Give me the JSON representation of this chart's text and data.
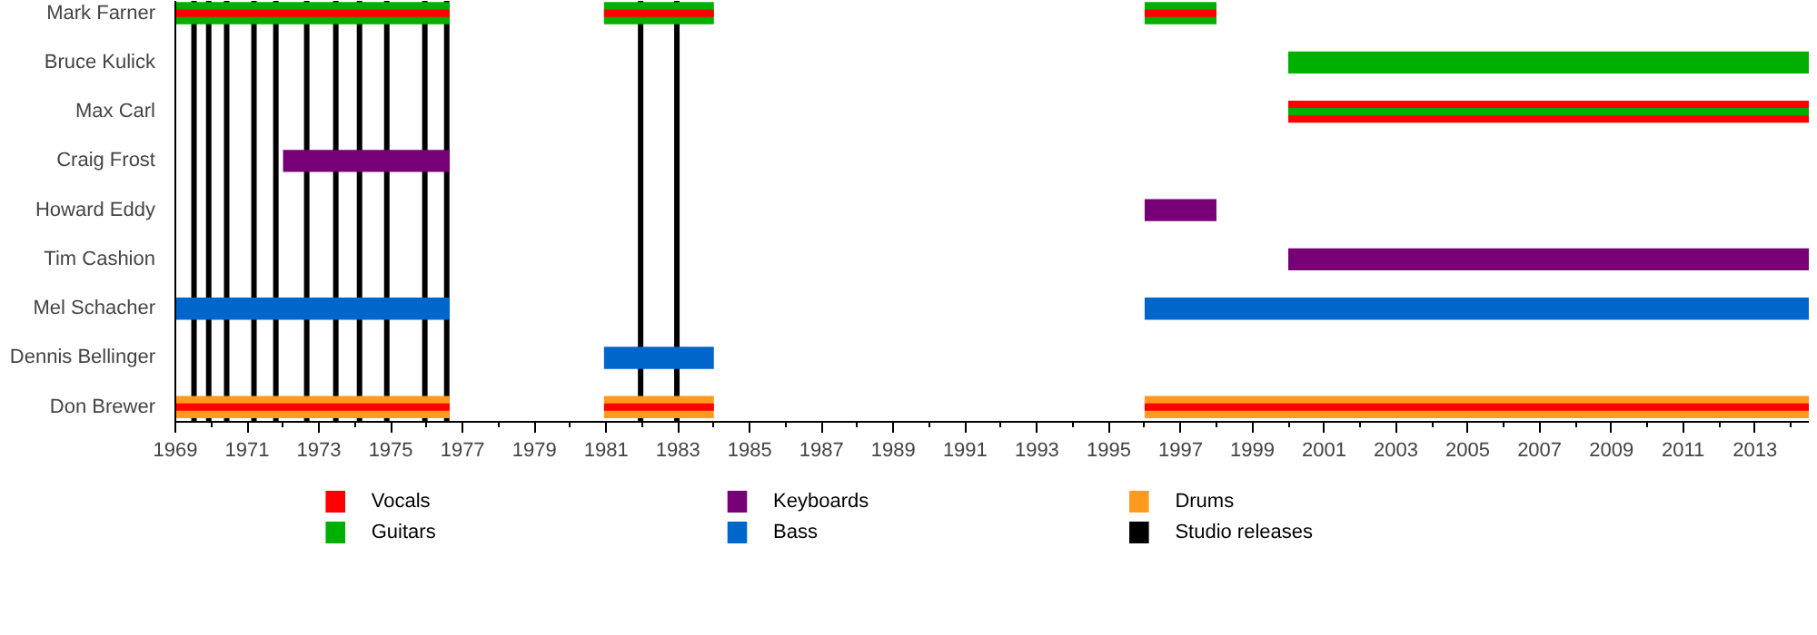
{
  "chart_data": {
    "type": "bar",
    "orientation": "horizontal",
    "categories": [
      "Mark Farner",
      "Bruce Kulick",
      "Max Carl",
      "Craig Frost",
      "Howard Eddy",
      "Tim Cashion",
      "Mel Schacher",
      "Dennis Bellinger",
      "Don Brewer"
    ],
    "xlim": [
      1969,
      2014.5
    ],
    "xticks": [
      1969,
      {
        "value": 1970,
        "label": null
      },
      1971,
      {
        "value": 1972,
        "label": null
      },
      1973,
      {
        "value": 1974,
        "label": null
      },
      1975,
      {
        "value": 1976,
        "label": null
      },
      1977,
      {
        "value": 1978,
        "label": null
      },
      1979,
      {
        "value": 1980,
        "label": null
      },
      1981,
      {
        "value": 1982,
        "label": null
      },
      1983,
      {
        "value": 1984,
        "label": null
      },
      1985,
      {
        "value": 1986,
        "label": null
      },
      1987,
      {
        "value": 1988,
        "label": null
      },
      1989,
      {
        "value": 1990,
        "label": null
      },
      1991,
      {
        "value": 1992,
        "label": null
      },
      1993,
      {
        "value": 1994,
        "label": null
      },
      1995,
      {
        "value": 1996,
        "label": null
      },
      1997,
      {
        "value": 1998,
        "label": null
      },
      1999,
      {
        "value": 2000,
        "label": null
      },
      2001,
      {
        "value": 2002,
        "label": null
      },
      2003,
      {
        "value": 2004,
        "label": null
      },
      2005,
      {
        "value": 2006,
        "label": null
      },
      2007,
      {
        "value": 2008,
        "label": null
      },
      2009,
      {
        "value": 2010,
        "label": null
      },
      2011,
      {
        "value": 2012,
        "label": null
      },
      2013,
      {
        "value": 2014,
        "label": null
      }
    ],
    "series": [
      {
        "name": "Vocals",
        "color": "#ff0000",
        "base": [
          null,
          null,
          2000,
          null,
          null,
          null,
          null,
          null,
          null
        ],
        "values": [
          null,
          null,
          14.5,
          null,
          null,
          null,
          null,
          null,
          null
        ]
      },
      {
        "name": "Guitars",
        "color": "#00b000",
        "base": [
          1969,
          2000,
          2000,
          null,
          null,
          null,
          null,
          null,
          null
        ],
        "values": [
          7.64,
          14.5,
          14.5,
          null,
          null,
          null,
          null,
          null,
          null
        ]
      },
      {
        "color": "#00b000",
        "base": [
          1980.94,
          null,
          null,
          null,
          null,
          null,
          null,
          null,
          null
        ],
        "values": [
          3.06,
          null,
          null,
          null,
          null,
          null,
          null,
          null,
          null
        ]
      },
      {
        "color": "#00b000",
        "base": [
          1996,
          null,
          null,
          null,
          null,
          null,
          null,
          null,
          null
        ],
        "values": [
          2,
          null,
          null,
          null,
          null,
          null,
          null,
          null,
          null
        ]
      },
      {
        "name": "Keyboards",
        "color": "#770077",
        "base": [
          null,
          null,
          null,
          1972,
          1996,
          2000,
          null,
          null,
          null
        ],
        "values": [
          null,
          null,
          null,
          4.64,
          2,
          14.5,
          null,
          null,
          null
        ]
      },
      {
        "name": "Bass",
        "color": "#0066cc",
        "base": [
          null,
          null,
          null,
          null,
          null,
          null,
          1969,
          1980.94,
          null
        ],
        "values": [
          null,
          null,
          null,
          null,
          null,
          null,
          7.64,
          3.06,
          null
        ]
      },
      {
        "color": "#0066cc",
        "base": [
          null,
          null,
          null,
          null,
          null,
          null,
          1996,
          null,
          null
        ],
        "values": [
          null,
          null,
          null,
          null,
          null,
          null,
          18.5,
          null,
          null
        ]
      },
      {
        "name": "Drums",
        "color": "#ff9a1f",
        "base": [
          null,
          null,
          null,
          null,
          null,
          null,
          null,
          null,
          1969
        ],
        "values": [
          null,
          null,
          null,
          null,
          null,
          null,
          null,
          null,
          7.64
        ]
      },
      {
        "color": "#ff9a1f",
        "base": [
          null,
          null,
          null,
          null,
          null,
          null,
          null,
          null,
          1980.94
        ],
        "values": [
          null,
          null,
          null,
          null,
          null,
          null,
          null,
          null,
          3.06
        ]
      },
      {
        "color": "#ff9a1f",
        "base": [
          null,
          null,
          null,
          null,
          null,
          null,
          null,
          null,
          1996
        ],
        "values": [
          null,
          null,
          null,
          null,
          null,
          null,
          null,
          null,
          18.5
        ]
      },
      {
        "color": "#ff0000",
        "base": [
          1969,
          null,
          null,
          null,
          null,
          null,
          null,
          null,
          1969
        ],
        "values": [
          7.64,
          null,
          null,
          null,
          null,
          null,
          null,
          null,
          7.64
        ]
      },
      {
        "color": "#ff0000",
        "base": [
          1980.94,
          null,
          null,
          null,
          null,
          null,
          null,
          null,
          1980.94
        ],
        "values": [
          3.06,
          null,
          null,
          null,
          null,
          null,
          null,
          null,
          3.06
        ]
      },
      {
        "color": "#ff0000",
        "base": [
          1996,
          null,
          null,
          null,
          null,
          null,
          null,
          null,
          1996
        ],
        "values": [
          2,
          null,
          null,
          null,
          null,
          null,
          null,
          null,
          18.5
        ]
      }
    ],
    "ref_lines": [
      {
        "axis": "x",
        "value": 1969.52,
        "label": "Studio releases",
        "color": "#000000"
      },
      {
        "axis": "x",
        "value": 1969.93,
        "color": "#000000"
      },
      {
        "axis": "x",
        "value": 1970.43,
        "color": "#000000"
      },
      {
        "axis": "x",
        "value": 1971.19,
        "color": "#000000"
      },
      {
        "axis": "x",
        "value": 1971.8,
        "color": "#000000"
      },
      {
        "axis": "x",
        "value": 1972.66,
        "color": "#000000"
      },
      {
        "axis": "x",
        "value": 1973.47,
        "color": "#000000"
      },
      {
        "axis": "x",
        "value": 1974.13,
        "color": "#000000"
      },
      {
        "axis": "x",
        "value": 1974.89,
        "color": "#000000"
      },
      {
        "axis": "x",
        "value": 1975.95,
        "color": "#000000"
      },
      {
        "axis": "x",
        "value": 1976.56,
        "color": "#000000"
      },
      {
        "axis": "x",
        "value": 1981.96,
        "color": "#000000"
      },
      {
        "axis": "x",
        "value": 1982.97,
        "color": "#000000"
      }
    ],
    "legend": "bottom",
    "grid": false
  }
}
